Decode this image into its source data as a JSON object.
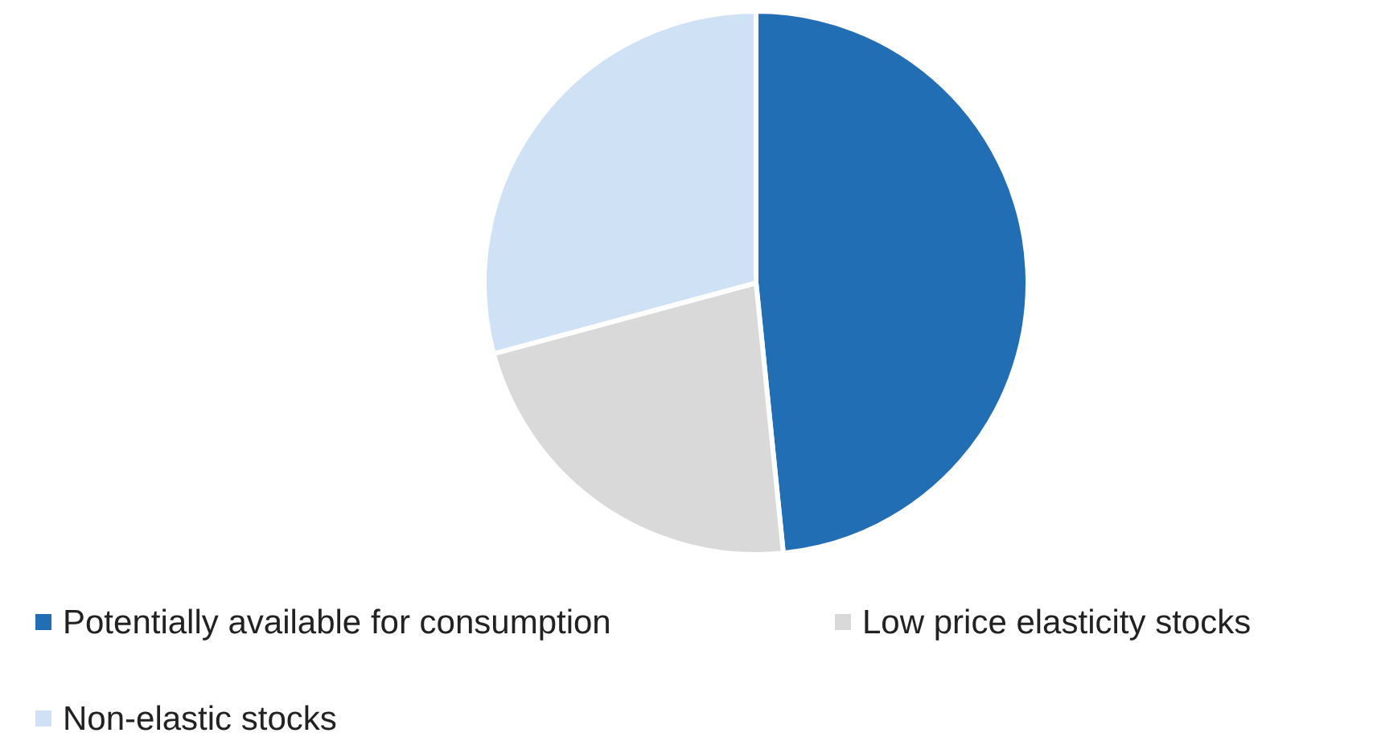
{
  "chart_data": {
    "type": "pie",
    "categories": [
      "Potentially available for consumption",
      "Low price elasticity stocks",
      "Non-elastic stocks"
    ],
    "values": [
      48.4,
      22.4,
      29.2
    ],
    "colors": [
      "#226eb4",
      "#d9d9d9",
      "#cfe2f5"
    ],
    "legend": "bottom"
  }
}
